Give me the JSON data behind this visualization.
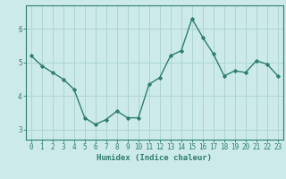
{
  "x": [
    0,
    1,
    2,
    3,
    4,
    5,
    6,
    7,
    8,
    9,
    10,
    11,
    12,
    13,
    14,
    15,
    16,
    17,
    18,
    19,
    20,
    21,
    22,
    23
  ],
  "y": [
    5.2,
    4.9,
    4.7,
    4.5,
    4.2,
    3.35,
    3.15,
    3.3,
    3.55,
    3.35,
    3.35,
    4.35,
    4.55,
    5.2,
    5.35,
    6.3,
    5.75,
    5.25,
    4.6,
    4.75,
    4.7,
    5.05,
    4.95,
    4.6
  ],
  "line_color": "#2e7d6e",
  "marker": "D",
  "markersize": 1.8,
  "linewidth": 1.0,
  "xlabel": "Humidex (Indice chaleur)",
  "xlim": [
    -0.5,
    23.5
  ],
  "ylim": [
    2.7,
    6.7
  ],
  "yticks": [
    3,
    4,
    5,
    6
  ],
  "xticks": [
    0,
    1,
    2,
    3,
    4,
    5,
    6,
    7,
    8,
    9,
    10,
    11,
    12,
    13,
    14,
    15,
    16,
    17,
    18,
    19,
    20,
    21,
    22,
    23
  ],
  "bg_color": "#cceaea",
  "grid_color": "#aed4d4",
  "axis_color": "#2e7d6e",
  "tick_color": "#2e7d6e",
  "label_color": "#2e7d6e",
  "xlabel_fontsize": 6.5,
  "tick_fontsize": 5.5
}
